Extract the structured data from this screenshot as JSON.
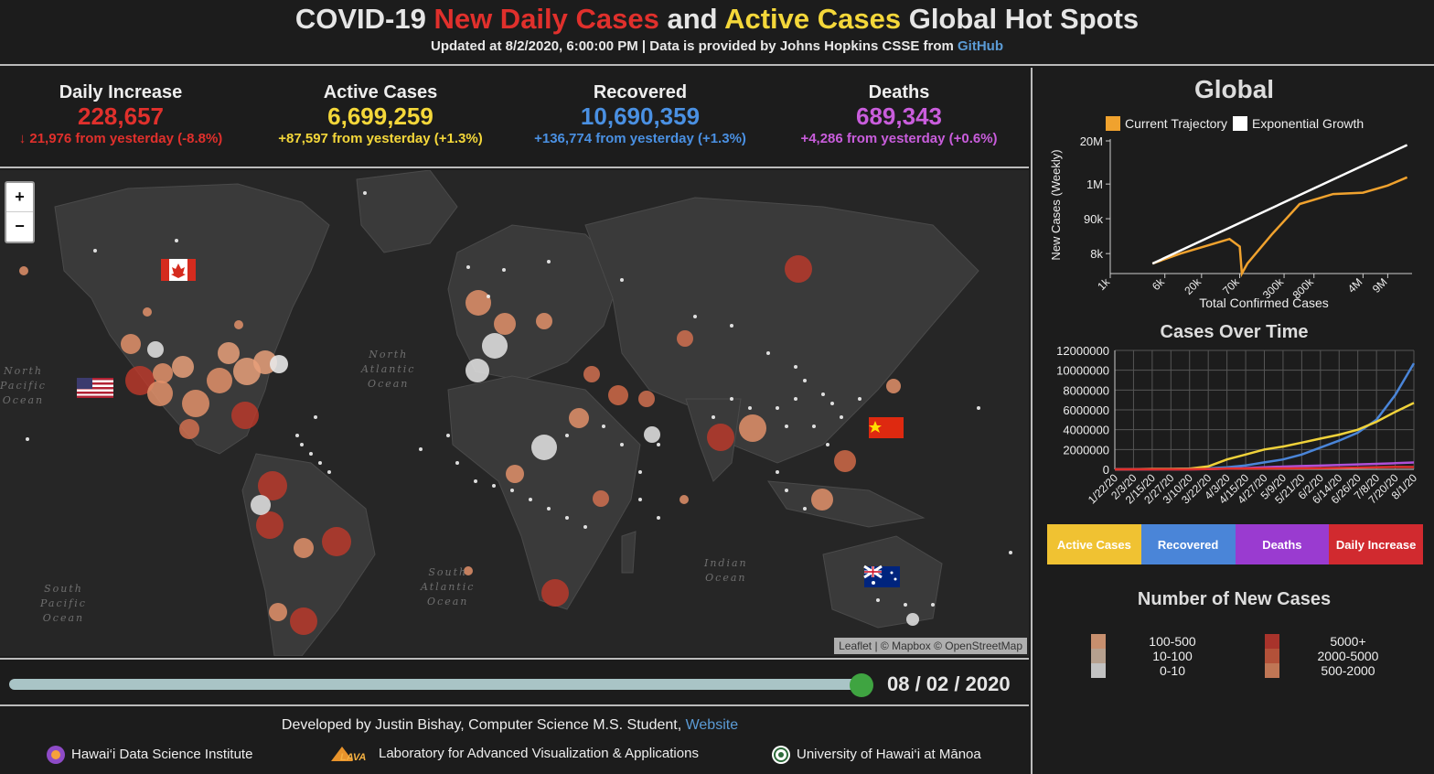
{
  "header": {
    "title_part1": "COVID-19 ",
    "title_part2": "New Daily Cases",
    "title_part3": " and ",
    "title_part4": "Active Cases",
    "title_part5": " Global Hot Spots",
    "subtitle": "Updated at 8/2/2020, 6:00:00 PM | Data is provided by Johns Hopkins CSSE from ",
    "subtitle_link": "GitHub"
  },
  "stats": [
    {
      "label": "Daily Increase",
      "value": "228,657",
      "change": "↓ 21,976 from yesterday (-8.8%)",
      "color": "#e0302c"
    },
    {
      "label": "Active Cases",
      "value": "6,699,259",
      "change": "+87,597 from yesterday (+1.3%)",
      "color": "#f4d73a"
    },
    {
      "label": "Recovered",
      "value": "10,690,359",
      "change": "+136,774 from yesterday (+1.3%)",
      "color": "#4a90e2"
    },
    {
      "label": "Deaths",
      "value": "689,343",
      "change": "+4,286 from yesterday (+0.6%)",
      "color": "#c95ddc"
    }
  ],
  "map": {
    "zoom_in": "+",
    "zoom_out": "−",
    "attribution": "Leaflet | © Mapbox © OpenStreetMap",
    "labels": {
      "north_pacific": "North\nPacific\nOcean",
      "north_atlantic": "North\nAtlantic\nOcean",
      "south_pacific": "South\nPacific\nOcean",
      "south_atlantic": "South\nAtlantic\nOcean",
      "indian": "Indian\nOcean"
    }
  },
  "timeline": {
    "progress": 1.0,
    "date": "08 / 02 / 2020"
  },
  "footer": {
    "dev_text": "Developed by Justin Bishay, Computer Science M.S. Student, ",
    "dev_link": "Website",
    "inst1": "Hawai‘i Data Science Institute",
    "inst2": "Laboratory for Advanced Visualization & Applications",
    "inst3": "University of Hawai‘i at Mānoa"
  },
  "global": {
    "title": "Global",
    "legend_current": "Current Trajectory",
    "legend_exp": "Exponential Growth",
    "ylabel": "New Cases (Weekly)",
    "xlabel": "Total Confirmed Cases",
    "yticks": [
      "20M",
      "1M",
      "90k",
      "8k"
    ],
    "xticks": [
      "1k",
      "6k",
      "20k",
      "70k",
      "300k",
      "800k",
      "4M",
      "9M"
    ]
  },
  "cases_over_time": {
    "title": "Cases Over Time",
    "yticks": [
      "12000000",
      "10000000",
      "8000000",
      "6000000",
      "4000000",
      "2000000",
      "0"
    ],
    "xticks": [
      "1/22/20",
      "2/3/20",
      "2/15/20",
      "2/27/20",
      "3/10/20",
      "3/22/20",
      "4/3/20",
      "4/15/20",
      "4/27/20",
      "5/9/20",
      "5/21/20",
      "6/2/20",
      "6/14/20",
      "6/26/20",
      "7/8/20",
      "7/20/20",
      "8/1/20"
    ]
  },
  "buttons": [
    {
      "label": "Active Cases",
      "color": "#f0c232"
    },
    {
      "label": "Recovered",
      "color": "#4a85d8"
    },
    {
      "label": "Deaths",
      "color": "#9a3bd0"
    },
    {
      "label": "Daily Increase",
      "color": "#d12a2f"
    }
  ],
  "legend": {
    "title": "Number of New Cases",
    "left": [
      "100-500",
      "10-100",
      "0-10"
    ],
    "right": [
      "5000+",
      "2000-5000",
      "500-2000"
    ]
  },
  "chart_data": [
    {
      "type": "line",
      "title": "Global",
      "xlabel": "Total Confirmed Cases",
      "ylabel": "New Cases (Weekly)",
      "x_scale": "log",
      "y_scale": "log",
      "legend": "top",
      "series": [
        {
          "name": "Current Trajectory",
          "color": "#f0a22e",
          "x": [
            4000,
            10000,
            30000,
            50000,
            70000,
            75000,
            90000,
            200000,
            500000,
            1500000,
            4000000,
            9000000,
            17000000
          ],
          "y": [
            4000,
            8000,
            16000,
            22000,
            13000,
            2000,
            4000,
            30000,
            250000,
            500000,
            550000,
            900000,
            1600000
          ]
        },
        {
          "name": "Exponential Growth",
          "color": "#ffffff",
          "x": [
            4000,
            17000000
          ],
          "y": [
            4000,
            15000000
          ]
        }
      ]
    },
    {
      "type": "line",
      "title": "Cases Over Time",
      "ylim": [
        0,
        12000000
      ],
      "x": [
        "1/22/20",
        "2/3/20",
        "2/15/20",
        "2/27/20",
        "3/10/20",
        "3/22/20",
        "4/3/20",
        "4/15/20",
        "4/27/20",
        "5/9/20",
        "5/21/20",
        "6/2/20",
        "6/14/20",
        "6/26/20",
        "7/8/20",
        "7/20/20",
        "8/1/20"
      ],
      "series": [
        {
          "name": "Recovered",
          "color": "#4a85d8",
          "values": [
            0,
            500,
            10000,
            30000,
            60000,
            100000,
            200000,
            400000,
            700000,
            1000000,
            1500000,
            2200000,
            2900000,
            3700000,
            5000000,
            7500000,
            10700000
          ]
        },
        {
          "name": "Active Cases",
          "color": "#f0d23a",
          "values": [
            500,
            8000,
            45000,
            45000,
            60000,
            300000,
            1000000,
            1500000,
            2000000,
            2300000,
            2700000,
            3100000,
            3500000,
            4000000,
            4800000,
            5800000,
            6700000
          ]
        },
        {
          "name": "Deaths",
          "color": "#b050d8",
          "values": [
            0,
            0,
            1000,
            3000,
            4000,
            15000,
            60000,
            130000,
            210000,
            280000,
            330000,
            380000,
            430000,
            500000,
            550000,
            620000,
            690000
          ]
        },
        {
          "name": "Daily Increase",
          "color": "#e0302c",
          "values": [
            0,
            2000,
            2000,
            1000,
            4000,
            35000,
            80000,
            80000,
            85000,
            90000,
            100000,
            120000,
            140000,
            180000,
            200000,
            240000,
            230000
          ]
        }
      ]
    }
  ],
  "colors": {
    "bg": "#1c1c1c",
    "map_bg": "#262626",
    "land": "#3a3a3a"
  }
}
